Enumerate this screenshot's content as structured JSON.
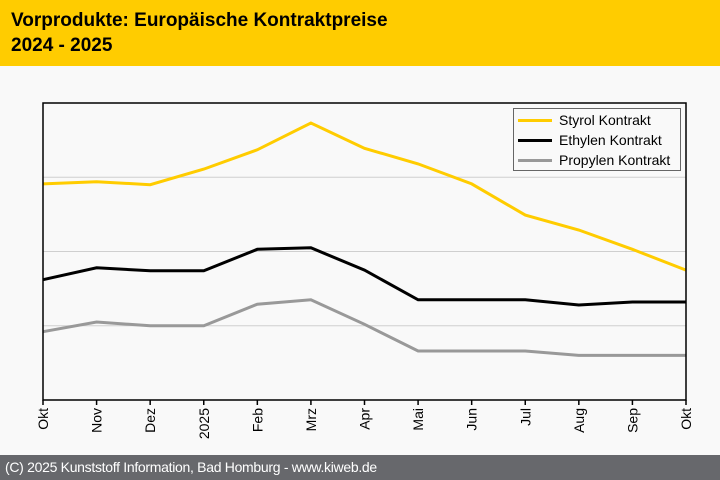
{
  "header": {
    "title": "Vorprodukte: Europäische Kontraktpreise",
    "subtitle": "2024 - 2025",
    "background": "#ffcc00"
  },
  "footer": {
    "text": "(C) 2025 Kunststoff Information, Bad Homburg - www.kiweb.de",
    "background": "#67686c"
  },
  "chart_data": {
    "type": "line",
    "title": "Vorprodukte: Europäische Kontraktpreise 2024 - 2025",
    "xlabel": "",
    "ylabel": "",
    "y_tick_labels_shown": false,
    "y_units": "relative (gridline = 1 unit, no axis labels shown)",
    "ylim": [
      0,
      4
    ],
    "grid": "horizontal",
    "legend_position": "top-right",
    "categories": [
      "Okt",
      "Nov",
      "Dez",
      "2025",
      "Feb",
      "Mrz",
      "Apr",
      "Mai",
      "Jun",
      "Jul",
      "Aug",
      "Sep",
      "Okt"
    ],
    "series": [
      {
        "name": "Styrol Kontrakt",
        "color": "#ffcc00",
        "values": [
          2.91,
          2.94,
          2.9,
          3.11,
          3.37,
          3.73,
          3.39,
          3.18,
          2.91,
          2.49,
          2.29,
          2.03,
          1.75
        ]
      },
      {
        "name": "Ethylen Kontrakt",
        "color": "#000000",
        "values": [
          1.62,
          1.78,
          1.74,
          1.74,
          2.03,
          2.05,
          1.75,
          1.35,
          1.35,
          1.35,
          1.28,
          1.32,
          1.32
        ]
      },
      {
        "name": "Propylen Kontrakt",
        "color": "#999999",
        "values": [
          0.92,
          1.05,
          1.0,
          1.0,
          1.29,
          1.35,
          1.02,
          0.66,
          0.66,
          0.66,
          0.6,
          0.6,
          0.6
        ]
      }
    ]
  }
}
